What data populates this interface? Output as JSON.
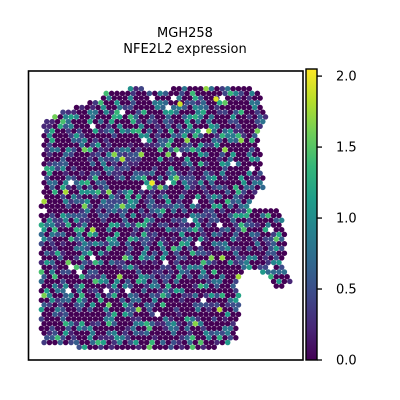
{
  "chart_data": {
    "type": "scatter",
    "subtype": "spatial-hexagonal-spot-plot",
    "title_lines": [
      "MGH258",
      "NFE2L2 expression"
    ],
    "xlabel": "",
    "ylabel": "",
    "colorbar": {
      "colormap": "viridis",
      "vmin": 0.0,
      "vmax": 2.05,
      "tick_values": [
        0.0,
        0.5,
        1.0,
        1.5,
        2.0
      ],
      "tick_labels": [
        "0.0",
        "0.5",
        "1.0",
        "1.5",
        "2.0"
      ],
      "colormap_stops": [
        "#440154",
        "#482878",
        "#3e4989",
        "#31688e",
        "#26828e",
        "#1f9e89",
        "#35b779",
        "#6ece58",
        "#b5de2b",
        "#fde725"
      ]
    },
    "spots": {
      "count_estimate": 1900,
      "value_range": [
        0.0,
        2.05
      ],
      "dominant_value": 0.0,
      "highlights": [
        {
          "label": "max spot (yellow)",
          "value": 2.0
        },
        {
          "label": "bright spot (yellow)",
          "value": 1.95
        },
        {
          "label": "bright spot (yellow)",
          "value": 1.9
        }
      ]
    },
    "axes_visible": false,
    "grid": false,
    "legend": "colorbar-right"
  }
}
